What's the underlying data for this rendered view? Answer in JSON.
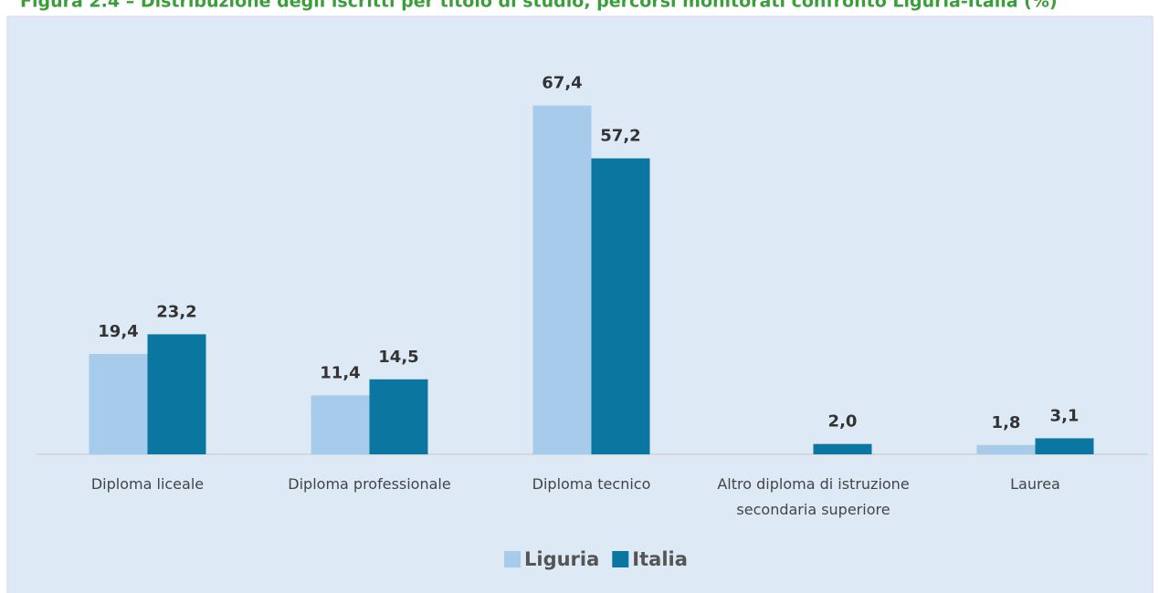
{
  "chart_data": {
    "type": "bar",
    "title": "Figura 2.4 – Distribuzione degli iscritti per titolo di studio, percorsi monitorati confronto Liguria-Italia (%)",
    "categories": [
      "Diploma liceale",
      "Diploma professionale",
      "Diploma tecnico",
      "Altro diploma di istruzione secondaria superiore",
      "Laurea"
    ],
    "series": [
      {
        "name": "Liguria",
        "color": "#a7cbeb",
        "values": [
          19.4,
          11.4,
          67.4,
          null,
          1.8
        ],
        "value_labels": [
          "19,4",
          "11,4",
          "67,4",
          null,
          "1,8"
        ]
      },
      {
        "name": "Italia",
        "color": "#0b76a0",
        "values": [
          23.2,
          14.5,
          57.2,
          2.0,
          3.1
        ],
        "value_labels": [
          "23,2",
          "14,5",
          "57,2",
          "2,0",
          "3,1"
        ]
      }
    ],
    "ylim": [
      0,
      70
    ],
    "legend": "bottom"
  }
}
